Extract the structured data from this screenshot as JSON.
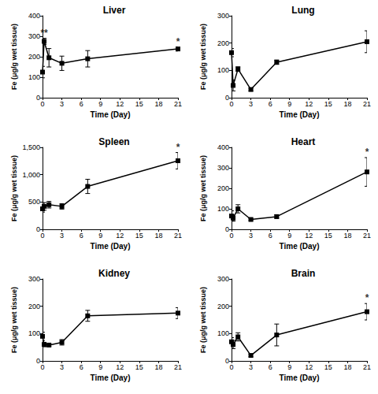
{
  "chart_data": [
    {
      "type": "line",
      "title": "Liver",
      "x_label": "Time (Day)",
      "y_label": "Fe (μg/g wet tissue)",
      "x": [
        0,
        0.25,
        1,
        3,
        7,
        21
      ],
      "values": [
        125,
        275,
        195,
        168,
        190,
        238
      ],
      "errors": [
        28,
        15,
        45,
        35,
        40,
        10
      ],
      "color": "#000000",
      "marker": "square",
      "grid": false,
      "xlim": [
        0,
        21
      ],
      "xticks": [
        0,
        3,
        6,
        9,
        12,
        15,
        18,
        21
      ],
      "ylim": [
        0,
        400
      ],
      "yticks": [
        0,
        100,
        200,
        300,
        400
      ],
      "annotations": [
        {
          "x": 0.25,
          "text": "**"
        },
        {
          "x": 21,
          "text": "*"
        }
      ]
    },
    {
      "type": "line",
      "title": "Lung",
      "x_label": "Time (Day)",
      "y_label": "Fe (μg/g wet tissue)",
      "x": [
        0,
        0.25,
        1,
        3,
        7,
        21
      ],
      "values": [
        165,
        45,
        105,
        30,
        130,
        205
      ],
      "errors": [
        15,
        20,
        8,
        5,
        8,
        40
      ],
      "color": "#000000",
      "marker": "square",
      "grid": false,
      "xlim": [
        0,
        21
      ],
      "xticks": [
        0,
        3,
        6,
        9,
        12,
        15,
        18,
        21
      ],
      "ylim": [
        0,
        300
      ],
      "yticks": [
        0,
        100,
        200,
        300
      ],
      "annotations": []
    },
    {
      "type": "line",
      "title": "Spleen",
      "x_label": "Time (Day)",
      "y_label": "Fe (μg/g wet tissue)",
      "x": [
        0,
        0.25,
        1,
        3,
        7,
        21
      ],
      "values": [
        375,
        420,
        450,
        420,
        785,
        1255
      ],
      "errors": [
        60,
        70,
        60,
        50,
        130,
        150
      ],
      "color": "#000000",
      "marker": "square",
      "grid": false,
      "xlim": [
        0,
        21
      ],
      "xticks": [
        0,
        3,
        6,
        9,
        12,
        15,
        18,
        21
      ],
      "ylim": [
        0,
        1500
      ],
      "yticks": [
        0,
        500,
        1000,
        1500
      ],
      "annotations": [
        {
          "x": 21,
          "text": "*"
        }
      ]
    },
    {
      "type": "line",
      "title": "Heart",
      "x_label": "Time (Day)",
      "y_label": "Fe (μg/g wet tissue)",
      "x": [
        0,
        0.25,
        1,
        3,
        7,
        21
      ],
      "values": [
        65,
        55,
        100,
        48,
        62,
        280
      ],
      "errors": [
        25,
        15,
        20,
        5,
        8,
        70
      ],
      "color": "#000000",
      "marker": "square",
      "grid": false,
      "xlim": [
        0,
        21
      ],
      "xticks": [
        0,
        3,
        6,
        9,
        12,
        15,
        18,
        21
      ],
      "ylim": [
        0,
        400
      ],
      "yticks": [
        0,
        100,
        200,
        300,
        400
      ],
      "annotations": [
        {
          "x": 21,
          "text": "*"
        }
      ]
    },
    {
      "type": "line",
      "title": "Kidney",
      "x_label": "Time (Day)",
      "y_label": "Fe (μg/g wet tissue)",
      "x": [
        0,
        0.25,
        1,
        3,
        7,
        21
      ],
      "values": [
        90,
        60,
        58,
        68,
        165,
        175
      ],
      "errors": [
        15,
        8,
        5,
        10,
        20,
        20
      ],
      "color": "#000000",
      "marker": "square",
      "grid": false,
      "xlim": [
        0,
        21
      ],
      "xticks": [
        0,
        3,
        6,
        9,
        12,
        15,
        18,
        21
      ],
      "ylim": [
        0,
        300
      ],
      "yticks": [
        0,
        100,
        200,
        300
      ],
      "annotations": []
    },
    {
      "type": "line",
      "title": "Brain",
      "x_label": "Time (Day)",
      "y_label": "Fe (μg/g wet tissue)",
      "x": [
        0,
        0.25,
        1,
        3,
        7,
        21
      ],
      "values": [
        70,
        60,
        88,
        20,
        95,
        180
      ],
      "errors": [
        15,
        15,
        15,
        5,
        40,
        30
      ],
      "color": "#000000",
      "marker": "square",
      "grid": false,
      "xlim": [
        0,
        21
      ],
      "xticks": [
        0,
        3,
        6,
        9,
        12,
        15,
        18,
        21
      ],
      "ylim": [
        0,
        300
      ],
      "yticks": [
        0,
        100,
        200,
        300
      ],
      "annotations": [
        {
          "x": 21,
          "text": "*"
        }
      ]
    }
  ]
}
